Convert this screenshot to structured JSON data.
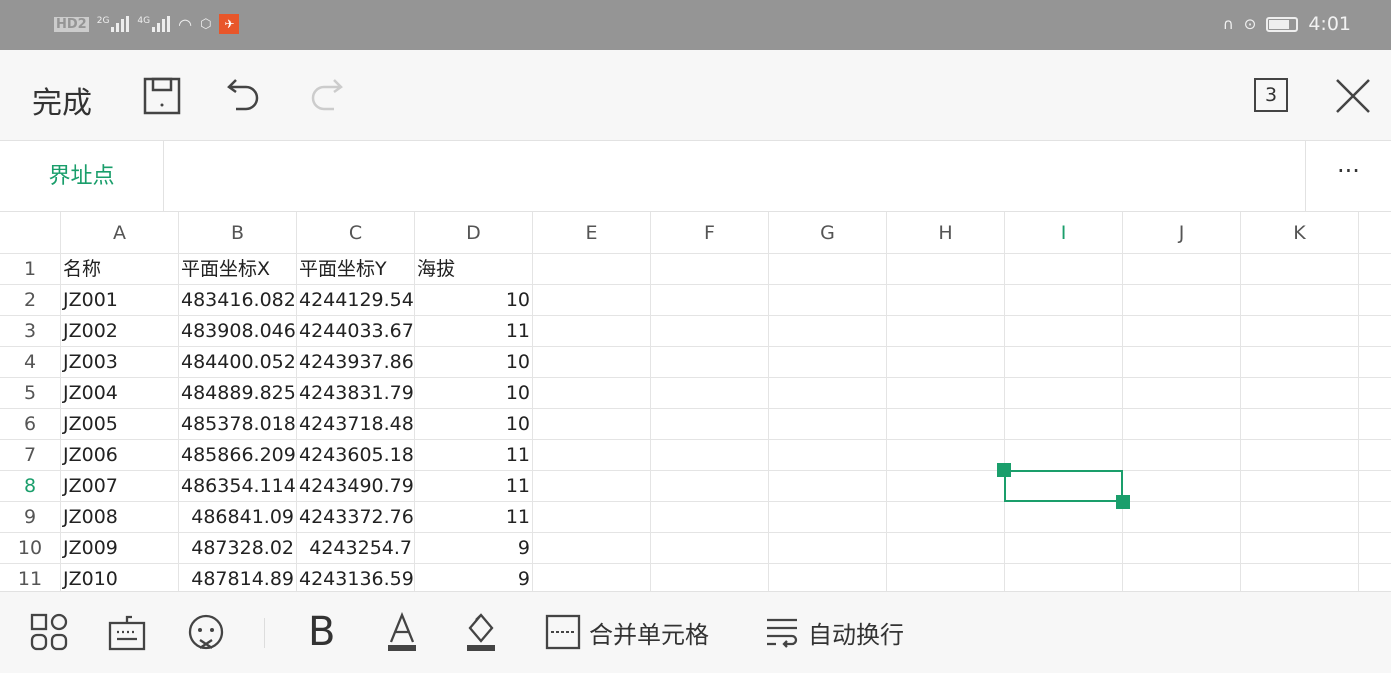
{
  "status_bar": {
    "left": [
      "HD2",
      "2G",
      "4G"
    ],
    "time": "4:01"
  },
  "toolbar": {
    "done_label": "完成",
    "sheet_count": "3"
  },
  "sheet_tab": {
    "active": "界址点",
    "more": "···"
  },
  "colors": {
    "accent": "#1a9e6b",
    "status_bar": "#959595"
  },
  "columns": [
    "A",
    "B",
    "C",
    "D",
    "E",
    "F",
    "G",
    "H",
    "I",
    "J",
    "K"
  ],
  "selected_cell": "I8",
  "rows": [
    {
      "n": "1",
      "cells": [
        "名称",
        "平面坐标X",
        "平面坐标Y",
        "海拔"
      ]
    },
    {
      "n": "2",
      "cells": [
        "JZ001",
        "483416.082",
        "4244129.54",
        "10"
      ]
    },
    {
      "n": "3",
      "cells": [
        "JZ002",
        "483908.046",
        "4244033.67",
        "11"
      ]
    },
    {
      "n": "4",
      "cells": [
        "JZ003",
        "484400.052",
        "4243937.86",
        "10"
      ]
    },
    {
      "n": "5",
      "cells": [
        "JZ004",
        "484889.825",
        "4243831.79",
        "10"
      ]
    },
    {
      "n": "6",
      "cells": [
        "JZ005",
        "485378.018",
        "4243718.48",
        "10"
      ]
    },
    {
      "n": "7",
      "cells": [
        "JZ006",
        "485866.209",
        "4243605.18",
        "11"
      ]
    },
    {
      "n": "8",
      "cells": [
        "JZ007",
        "486354.114",
        "4243490.79",
        "11"
      ]
    },
    {
      "n": "9",
      "cells": [
        "JZ008",
        "486841.09",
        "4243372.76",
        "11"
      ]
    },
    {
      "n": "10",
      "cells": [
        "JZ009",
        "487328.02",
        "4243254.7",
        "9"
      ]
    },
    {
      "n": "11",
      "cells": [
        "JZ010",
        "487814.89",
        "4243136.59",
        "9"
      ]
    }
  ],
  "bottom_toolbar": {
    "merge_label": "合并单元格",
    "wrap_label": "自动换行"
  }
}
